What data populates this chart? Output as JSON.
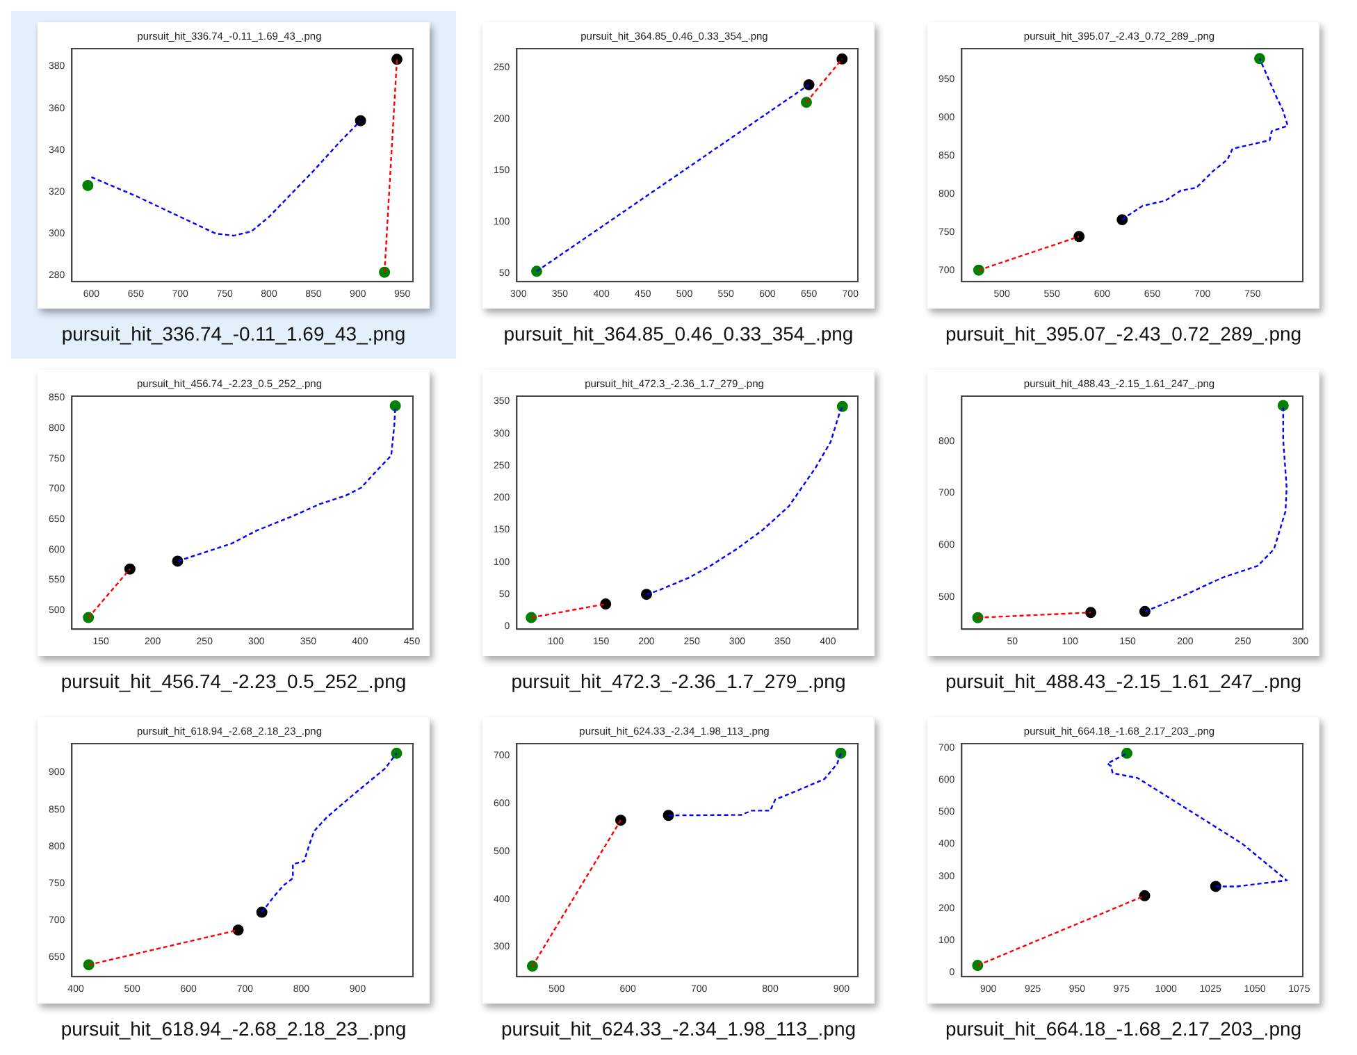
{
  "chart_data": [
    {
      "type": "line",
      "title": "pursuit_hit_336.74_-0.11_1.69_43_.png",
      "annotations": [
        "pursuit_hit_336.74_-0.11_1.69_43_.png"
      ],
      "xlim": [
        578,
        962
      ],
      "ylim": [
        277,
        388.5
      ],
      "xticks": [
        600,
        650,
        700,
        750,
        800,
        850,
        900,
        950
      ],
      "yticks": [
        280,
        300,
        320,
        340,
        360,
        380
      ],
      "series": [
        {
          "type": "line",
          "color": "#ff0000",
          "line_style": "dashed",
          "marker": "none",
          "x": [
            930,
            944
          ],
          "values": [
            281.5,
            383.4
          ]
        },
        {
          "type": "line",
          "color": "#0000ff",
          "line_style": "dashed",
          "marker": "none",
          "x": [
            600,
            650,
            700,
            740,
            760,
            780,
            800,
            850,
            880,
            903
          ],
          "values": [
            327,
            318,
            308,
            300,
            299,
            301,
            308,
            330,
            344,
            354
          ]
        },
        {
          "type": "scatter",
          "color": "#000000",
          "marker": "circle",
          "x": [
            903,
            944
          ],
          "values": [
            354,
            383.4
          ]
        },
        {
          "type": "scatter",
          "color": "#008000",
          "marker": "circle",
          "x": [
            596,
            930
          ],
          "values": [
            323,
            281.5
          ]
        }
      ]
    },
    {
      "type": "line",
      "title": "pursuit_hit_364.85_0.46_0.33_354_.png",
      "annotations": [
        "pursuit_hit_364.85_0.46_0.33_354_.png"
      ],
      "xlim": [
        298,
        709
      ],
      "ylim": [
        42,
        268
      ],
      "xticks": [
        300,
        350,
        400,
        450,
        500,
        550,
        600,
        650,
        700
      ],
      "yticks": [
        50,
        100,
        150,
        200,
        250
      ],
      "series": [
        {
          "type": "line",
          "color": "#ff0000",
          "line_style": "dashed",
          "marker": "none",
          "x": [
            647,
            690
          ],
          "values": [
            216,
            258
          ]
        },
        {
          "type": "line",
          "color": "#0000ff",
          "line_style": "dashed",
          "marker": "none",
          "x": [
            322,
            650
          ],
          "values": [
            52,
            233
          ]
        },
        {
          "type": "scatter",
          "color": "#000000",
          "marker": "circle",
          "x": [
            650,
            690
          ],
          "values": [
            233,
            258
          ]
        },
        {
          "type": "scatter",
          "color": "#008000",
          "marker": "circle",
          "x": [
            322,
            647
          ],
          "values": [
            52,
            216
          ]
        }
      ]
    },
    {
      "type": "line",
      "title": "pursuit_hit_395.07_-2.43_0.72_289_.png",
      "annotations": [
        "pursuit_hit_395.07_-2.43_0.72_289_.png"
      ],
      "xlim": [
        460,
        800
      ],
      "ylim": [
        685,
        990
      ],
      "xticks": [
        500,
        550,
        600,
        650,
        700,
        750
      ],
      "yticks": [
        700,
        750,
        800,
        850,
        900,
        950
      ],
      "series": [
        {
          "type": "line",
          "color": "#ff0000",
          "line_style": "dashed",
          "marker": "none",
          "x": [
            477,
            577
          ],
          "values": [
            700,
            744
          ]
        },
        {
          "type": "line",
          "color": "#0000ff",
          "line_style": "dashed",
          "marker": "none",
          "x": [
            620,
            624,
            640,
            663,
            678,
            694,
            710,
            725,
            730,
            767,
            769,
            785,
            780,
            774,
            757
          ],
          "values": [
            766,
            770,
            784,
            791,
            804,
            808,
            829,
            845,
            859,
            870,
            882,
            889,
            910,
            926,
            977
          ]
        },
        {
          "type": "scatter",
          "color": "#000000",
          "marker": "circle",
          "x": [
            577,
            620
          ],
          "values": [
            744,
            766
          ]
        },
        {
          "type": "scatter",
          "color": "#008000",
          "marker": "circle",
          "x": [
            477,
            757
          ],
          "values": [
            700,
            977
          ]
        }
      ]
    },
    {
      "type": "line",
      "title": "pursuit_hit_456.74_-2.23_0.5_252_.png",
      "annotations": [
        "pursuit_hit_456.74_-2.23_0.5_252_.png"
      ],
      "xlim": [
        122,
        451
      ],
      "ylim": [
        469,
        853
      ],
      "xticks": [
        150,
        200,
        250,
        300,
        350,
        400,
        450
      ],
      "yticks": [
        500,
        550,
        600,
        650,
        700,
        750,
        800,
        850
      ],
      "series": [
        {
          "type": "line",
          "color": "#ff0000",
          "line_style": "dashed",
          "marker": "none",
          "x": [
            138,
            178
          ],
          "values": [
            488,
            568
          ]
        },
        {
          "type": "line",
          "color": "#0000ff",
          "line_style": "dashed",
          "marker": "none",
          "x": [
            224,
            251,
            276,
            301,
            336,
            361,
            386,
            401,
            416,
            430,
            433,
            434
          ],
          "values": [
            581,
            596,
            610,
            632,
            656,
            675,
            689,
            702,
            730,
            755,
            804,
            837
          ]
        },
        {
          "type": "scatter",
          "color": "#000000",
          "marker": "circle",
          "x": [
            178,
            224
          ],
          "values": [
            568,
            581
          ]
        },
        {
          "type": "scatter",
          "color": "#008000",
          "marker": "circle",
          "x": [
            138,
            434
          ],
          "values": [
            488,
            837
          ]
        }
      ]
    },
    {
      "type": "line",
      "title": "pursuit_hit_472.3_-2.36_1.7_279_.png",
      "annotations": [
        "pursuit_hit_472.3_-2.36_1.7_279_.png"
      ],
      "xlim": [
        57,
        433
      ],
      "ylim": [
        -4,
        358
      ],
      "xticks": [
        100,
        150,
        200,
        250,
        300,
        350,
        400
      ],
      "yticks": [
        0,
        50,
        100,
        150,
        200,
        250,
        300,
        350
      ],
      "series": [
        {
          "type": "line",
          "color": "#ff0000",
          "line_style": "dashed",
          "marker": "none",
          "x": [
            73,
            155
          ],
          "values": [
            14,
            35
          ]
        },
        {
          "type": "line",
          "color": "#0000ff",
          "line_style": "dashed",
          "marker": "none",
          "x": [
            200,
            213,
            247,
            270,
            299,
            328,
            357,
            386,
            403,
            412,
            416
          ],
          "values": [
            50,
            56,
            76,
            94,
            120,
            150,
            187,
            246,
            287,
            328,
            342
          ]
        },
        {
          "type": "scatter",
          "color": "#000000",
          "marker": "circle",
          "x": [
            155,
            200
          ],
          "values": [
            35,
            50
          ]
        },
        {
          "type": "scatter",
          "color": "#008000",
          "marker": "circle",
          "x": [
            73,
            416
          ],
          "values": [
            14,
            342
          ]
        }
      ]
    },
    {
      "type": "line",
      "title": "pursuit_hit_488.43_-2.15_1.61_247_.png",
      "annotations": [
        "pursuit_hit_488.43_-2.15_1.61_247_.png"
      ],
      "xlim": [
        6,
        302
      ],
      "ylim": [
        438,
        887
      ],
      "xticks": [
        50,
        100,
        150,
        200,
        250,
        300
      ],
      "yticks": [
        500,
        600,
        700,
        800
      ],
      "series": [
        {
          "type": "line",
          "color": "#ff0000",
          "line_style": "dashed",
          "marker": "none",
          "x": [
            20,
            118
          ],
          "values": [
            460,
            470
          ]
        },
        {
          "type": "line",
          "color": "#0000ff",
          "line_style": "dashed",
          "marker": "none",
          "x": [
            165,
            196,
            232,
            263,
            277,
            287,
            288,
            285,
            285
          ],
          "values": [
            472,
            500,
            537,
            560,
            592,
            665,
            711,
            803,
            869
          ]
        },
        {
          "type": "scatter",
          "color": "#000000",
          "marker": "circle",
          "x": [
            118,
            165
          ],
          "values": [
            470,
            472
          ]
        },
        {
          "type": "scatter",
          "color": "#008000",
          "marker": "circle",
          "x": [
            20,
            285
          ],
          "values": [
            460,
            869
          ]
        }
      ]
    },
    {
      "type": "line",
      "title": "pursuit_hit_618.94_-2.68_2.18_23_.png",
      "annotations": [
        "pursuit_hit_618.94_-2.68_2.18_23_.png"
      ],
      "xlim": [
        393,
        998
      ],
      "ylim": [
        624,
        939
      ],
      "xticks": [
        400,
        500,
        600,
        700,
        800,
        900
      ],
      "yticks": [
        650,
        700,
        750,
        800,
        850,
        900
      ],
      "series": [
        {
          "type": "line",
          "color": "#ff0000",
          "line_style": "dashed",
          "marker": "none",
          "x": [
            423,
            688
          ],
          "values": [
            640,
            687
          ]
        },
        {
          "type": "line",
          "color": "#0000ff",
          "line_style": "dashed",
          "marker": "none",
          "x": [
            730,
            750,
            768,
            785,
            785,
            805,
            814,
            823,
            846,
            897,
            948,
            969
          ],
          "values": [
            711,
            731,
            747,
            757,
            776,
            780,
            802,
            821,
            840,
            873,
            905,
            926
          ]
        },
        {
          "type": "scatter",
          "color": "#000000",
          "marker": "circle",
          "x": [
            688,
            730
          ],
          "values": [
            687,
            711
          ]
        },
        {
          "type": "scatter",
          "color": "#008000",
          "marker": "circle",
          "x": [
            423,
            969
          ],
          "values": [
            640,
            926
          ]
        }
      ]
    },
    {
      "type": "line",
      "title": "pursuit_hit_624.33_-2.34_1.98_113_.png",
      "annotations": [
        "pursuit_hit_624.33_-2.34_1.98_113_.png"
      ],
      "xlim": [
        444,
        923
      ],
      "ylim": [
        238,
        725
      ],
      "xticks": [
        500,
        600,
        700,
        800,
        900
      ],
      "yticks": [
        300,
        400,
        500,
        600,
        700
      ],
      "series": [
        {
          "type": "line",
          "color": "#ff0000",
          "line_style": "dashed",
          "marker": "none",
          "x": [
            466,
            590
          ],
          "values": [
            260,
            565
          ]
        },
        {
          "type": "line",
          "color": "#0000ff",
          "line_style": "dashed",
          "marker": "none",
          "x": [
            657,
            759,
            774,
            800,
            807,
            832,
            876,
            894,
            899
          ],
          "values": [
            575,
            576,
            585,
            585,
            608,
            623,
            651,
            683,
            705
          ]
        },
        {
          "type": "scatter",
          "color": "#000000",
          "marker": "circle",
          "x": [
            590,
            657
          ],
          "values": [
            565,
            575
          ]
        },
        {
          "type": "scatter",
          "color": "#008000",
          "marker": "circle",
          "x": [
            466,
            899
          ],
          "values": [
            260,
            705
          ]
        }
      ]
    },
    {
      "type": "line",
      "title": "pursuit_hit_664.18_-1.68_2.17_203_.png",
      "annotations": [
        "pursuit_hit_664.18_-1.68_2.17_203_.png"
      ],
      "xlim": [
        885,
        1077
      ],
      "ylim": [
        -13,
        713
      ],
      "xticks": [
        900,
        925,
        950,
        975,
        1000,
        1025,
        1050,
        1075
      ],
      "yticks": [
        0,
        100,
        200,
        300,
        400,
        500,
        600,
        700
      ],
      "series": [
        {
          "type": "line",
          "color": "#ff0000",
          "line_style": "dashed",
          "marker": "none",
          "x": [
            894,
            988
          ],
          "values": [
            22,
            239
          ]
        },
        {
          "type": "line",
          "color": "#0000ff",
          "line_style": "dashed",
          "marker": "none",
          "x": [
            1028,
            1040,
            1068,
            1043,
            1014,
            984,
            970,
            969,
            967,
            978
          ],
          "values": [
            268,
            268,
            287,
            401,
            502,
            606,
            621,
            643,
            651,
            683
          ]
        },
        {
          "type": "scatter",
          "color": "#000000",
          "marker": "circle",
          "x": [
            988,
            1028
          ],
          "values": [
            239,
            268
          ]
        },
        {
          "type": "scatter",
          "color": "#008000",
          "marker": "circle",
          "x": [
            894,
            978
          ],
          "values": [
            22,
            683
          ]
        }
      ]
    }
  ]
}
